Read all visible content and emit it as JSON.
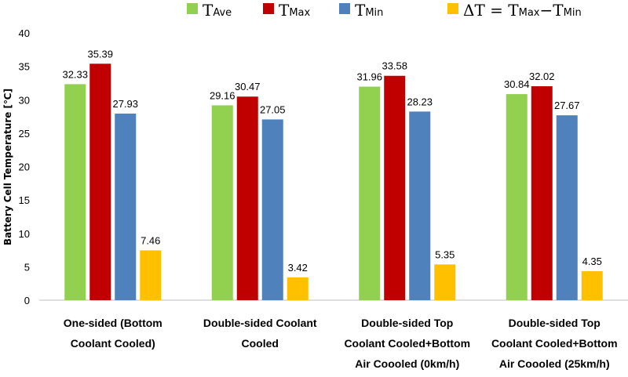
{
  "chart_data": {
    "type": "bar",
    "title": "",
    "xlabel": "",
    "ylabel": "Battery Cell Temperature [℃]",
    "ylim": [
      0,
      40
    ],
    "yticks": [
      0,
      5,
      10,
      15,
      20,
      25,
      30,
      35,
      40
    ],
    "grid": false,
    "legend_position": "top",
    "categories": [
      [
        "One-sided (Bottom",
        "Coolant Cooled)"
      ],
      [
        "Double-sided Coolant",
        "Cooled"
      ],
      [
        "Double-sided Top",
        "Coolant Cooled+Bottom",
        "Air Coooled (0km/h)"
      ],
      [
        "Double-sided Top",
        "Coolant Cooled+Bottom",
        "Air Coooled (25km/h)"
      ]
    ],
    "series": [
      {
        "name": "T_Ave",
        "label_main": "T",
        "label_sub": "Ave",
        "color": "#92d050",
        "values": [
          32.33,
          29.16,
          31.96,
          30.84
        ]
      },
      {
        "name": "T_Max",
        "label_main": "T",
        "label_sub": "Max",
        "color": "#c00000",
        "values": [
          35.39,
          30.47,
          33.58,
          32.02
        ]
      },
      {
        "name": "T_Min",
        "label_main": "T",
        "label_sub": "Min",
        "color": "#4f81bd",
        "values": [
          27.93,
          27.05,
          28.23,
          27.67
        ]
      },
      {
        "name": "ΔT = T_Max − T_Min",
        "label_main": "ΔT = T",
        "label_sub": "Max",
        "label_main2": "−T",
        "label_sub2": "Min",
        "color": "#ffc000",
        "values": [
          7.46,
          3.42,
          5.35,
          4.35
        ]
      }
    ]
  }
}
